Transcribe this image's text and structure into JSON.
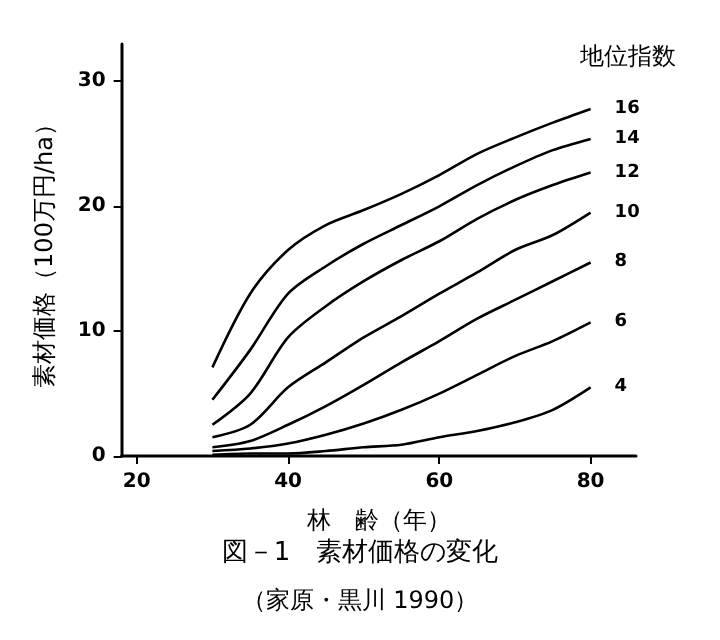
{
  "chart_data": {
    "type": "line",
    "title": "図－1　素材価格の変化",
    "annotations": [
      "（家原・黒川 1990）"
    ],
    "xlabel": "林　齢（年）",
    "ylabel": "素材価格（100万円/ha）",
    "legend_title": "地位指数",
    "x": [
      30,
      35,
      40,
      45,
      50,
      55,
      60,
      65,
      70,
      75,
      80
    ],
    "series": [
      {
        "name": "16",
        "color": "#000000",
        "values": [
          7.1,
          13,
          16.5,
          18.5,
          19.7,
          21,
          22.5,
          24.2,
          25.5,
          26.7,
          27.8
        ]
      },
      {
        "name": "14",
        "color": "#000000",
        "values": [
          4.5,
          8.5,
          13,
          15.2,
          17,
          18.5,
          20,
          21.7,
          23.2,
          24.5,
          25.4
        ]
      },
      {
        "name": "12",
        "color": "#000000",
        "values": [
          2.5,
          5,
          9.5,
          12,
          14,
          15.7,
          17.2,
          19,
          20.5,
          21.7,
          22.7
        ]
      },
      {
        "name": "10",
        "color": "#000000",
        "values": [
          1.5,
          2.5,
          5.5,
          7.5,
          9.5,
          11.2,
          13,
          14.7,
          16.5,
          17.7,
          19.5
        ]
      },
      {
        "name": "8",
        "color": "#000000",
        "values": [
          0.7,
          1.2,
          2.5,
          4,
          5.7,
          7.5,
          9.2,
          11,
          12.5,
          14,
          15.5
        ]
      },
      {
        "name": "6",
        "color": "#000000",
        "values": [
          0.4,
          0.6,
          1,
          1.7,
          2.6,
          3.7,
          5,
          6.5,
          8,
          9.2,
          10.7
        ]
      },
      {
        "name": "4",
        "color": "#000000",
        "values": [
          0.1,
          0.2,
          0.2,
          0.4,
          0.7,
          0.9,
          1.5,
          2,
          2.7,
          3.7,
          5.5
        ]
      }
    ],
    "xlim": [
      18,
      86
    ],
    "xticks": [
      20,
      40,
      60,
      80
    ],
    "ylim": [
      0,
      33
    ],
    "yticks": [
      0,
      10,
      20,
      30
    ],
    "grid": false,
    "legend": false,
    "marker": "none",
    "line_style": "solid"
  }
}
